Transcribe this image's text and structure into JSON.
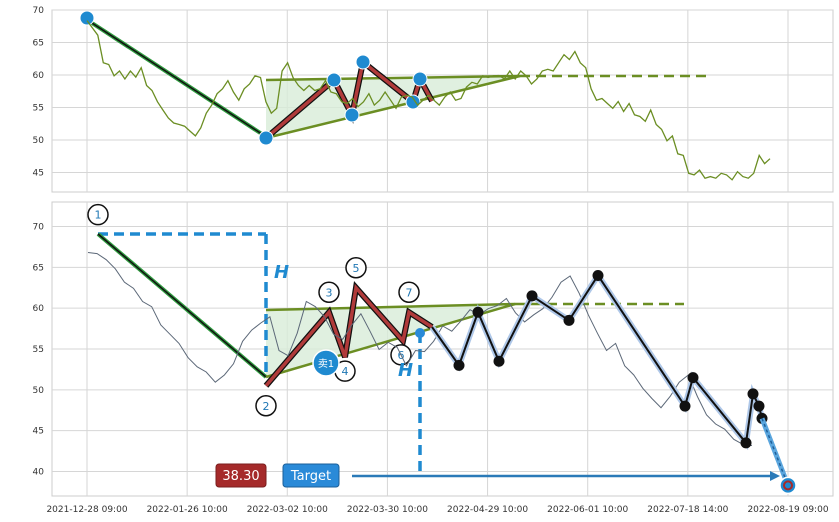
{
  "chart_data": [
    {
      "type": "line",
      "panel": "top",
      "ylim": [
        42,
        70
      ],
      "y_ticks": [
        45,
        50,
        55,
        60,
        65,
        70
      ],
      "grid": true,
      "series": [
        {
          "values": [
            [
              0,
              68.5
            ],
            [
              4,
              66
            ],
            [
              6,
              62
            ],
            [
              8,
              61.5
            ],
            [
              10,
              60
            ],
            [
              12,
              60.5
            ],
            [
              14,
              59.5
            ],
            [
              16,
              60.5
            ],
            [
              18,
              59.8
            ],
            [
              20,
              61
            ],
            [
              22,
              58.5
            ],
            [
              24,
              57.5
            ],
            [
              26,
              56
            ],
            [
              28,
              54.5
            ],
            [
              30,
              53.5
            ],
            [
              32,
              52.5
            ],
            [
              34,
              52.5
            ],
            [
              36,
              52
            ],
            [
              38,
              51.5
            ],
            [
              40,
              50.5
            ],
            [
              42,
              52
            ],
            [
              44,
              54
            ],
            [
              46,
              55.5
            ],
            [
              48,
              57
            ],
            [
              50,
              58
            ],
            [
              52,
              59
            ],
            [
              54,
              57.5
            ],
            [
              56,
              56
            ],
            [
              58,
              58
            ],
            [
              60,
              58.5
            ],
            [
              62,
              60
            ],
            [
              64,
              59.5
            ],
            [
              66,
              56
            ],
            [
              68,
              54
            ],
            [
              70,
              55
            ],
            [
              72,
              60.5
            ],
            [
              74,
              62
            ],
            [
              76,
              59.5
            ],
            [
              78,
              58.5
            ],
            [
              80,
              57.5
            ],
            [
              82,
              58.5
            ],
            [
              84,
              57.5
            ],
            [
              86,
              58
            ],
            [
              88,
              59
            ],
            [
              90,
              57.5
            ],
            [
              92,
              57
            ],
            [
              94,
              56
            ],
            [
              96,
              55.5
            ],
            [
              98,
              56.5
            ],
            [
              100,
              55
            ],
            [
              102,
              56
            ],
            [
              104,
              57
            ],
            [
              106,
              55.5
            ],
            [
              108,
              56
            ],
            [
              110,
              57.5
            ],
            [
              112,
              56
            ],
            [
              114,
              55
            ],
            [
              116,
              56.5
            ],
            [
              118,
              57
            ],
            [
              120,
              56.5
            ],
            [
              122,
              55.5
            ],
            [
              124,
              56
            ],
            [
              126,
              57
            ],
            [
              128,
              56
            ],
            [
              130,
              55.5
            ],
            [
              132,
              56.5
            ],
            [
              134,
              57.5
            ],
            [
              136,
              56
            ],
            [
              138,
              56.5
            ],
            [
              140,
              58
            ],
            [
              142,
              59
            ],
            [
              144,
              58.5
            ],
            [
              146,
              60
            ],
            [
              148,
              59.5
            ],
            [
              150,
              60
            ],
            [
              152,
              59.8
            ],
            [
              154,
              59.5
            ],
            [
              156,
              60.5
            ],
            [
              158,
              59.5
            ],
            [
              160,
              60.5
            ],
            [
              162,
              60
            ],
            [
              164,
              58.5
            ],
            [
              166,
              59.5
            ],
            [
              168,
              60.5
            ],
            [
              170,
              61
            ],
            [
              172,
              60.5
            ],
            [
              174,
              62
            ],
            [
              176,
              63
            ],
            [
              178,
              62.5
            ],
            [
              180,
              63.5
            ],
            [
              182,
              62
            ],
            [
              184,
              61
            ],
            [
              186,
              58
            ],
            [
              188,
              56
            ],
            [
              190,
              56.5
            ],
            [
              192,
              55.5
            ],
            [
              194,
              55
            ],
            [
              196,
              55.8
            ],
            [
              198,
              54.5
            ],
            [
              200,
              55.5
            ],
            [
              202,
              54
            ],
            [
              204,
              53.5
            ],
            [
              206,
              53
            ],
            [
              208,
              54.5
            ],
            [
              210,
              52.5
            ],
            [
              212,
              51.5
            ],
            [
              214,
              50
            ],
            [
              216,
              50.5
            ],
            [
              218,
              48
            ],
            [
              220,
              47.5
            ],
            [
              222,
              45
            ],
            [
              224,
              44.5
            ],
            [
              226,
              45.5
            ],
            [
              228,
              44
            ],
            [
              230,
              44.5
            ],
            [
              232,
              44
            ],
            [
              234,
              45
            ],
            [
              236,
              44.5
            ],
            [
              238,
              44
            ],
            [
              240,
              45
            ],
            [
              242,
              44.5
            ],
            [
              244,
              44
            ],
            [
              246,
              45
            ],
            [
              248,
              47.5
            ],
            [
              250,
              46.5
            ],
            [
              252,
              47
            ]
          ]
        }
      ]
    },
    {
      "type": "line",
      "panel": "bottom",
      "ylim": [
        37,
        73
      ],
      "y_ticks": [
        40,
        45,
        50,
        55,
        60,
        65,
        70
      ],
      "x_ticks": [
        "2021-12-28 09:00",
        "2022-01-26 10:00",
        "2022-03-02 10:00",
        "2022-03-30 10:00",
        "2022-04-29 10:00",
        "2022-06-01 10:00",
        "2022-07-18 14:00",
        "2022-08-19 09:00"
      ],
      "grid": true,
      "series": [
        {
          "values": [
            [
              0,
              67
            ],
            [
              3,
              66.5
            ],
            [
              6,
              66
            ],
            [
              9,
              65
            ],
            [
              12,
              63
            ],
            [
              15,
              62.5
            ],
            [
              18,
              61
            ],
            [
              21,
              60
            ],
            [
              24,
              58
            ],
            [
              27,
              57
            ],
            [
              30,
              55.5
            ],
            [
              33,
              54
            ],
            [
              36,
              53
            ],
            [
              39,
              52
            ],
            [
              42,
              51
            ],
            [
              45,
              52
            ],
            [
              48,
              53
            ],
            [
              51,
              56
            ],
            [
              54,
              57.5
            ],
            [
              57,
              58
            ],
            [
              60,
              59
            ],
            [
              63,
              55
            ],
            [
              66,
              54
            ],
            [
              69,
              57
            ],
            [
              72,
              61
            ],
            [
              75,
              60
            ],
            [
              78,
              59
            ],
            [
              81,
              57
            ],
            [
              84,
              56
            ],
            [
              87,
              58
            ],
            [
              90,
              59.5
            ],
            [
              93,
              57
            ],
            [
              96,
              55
            ],
            [
              99,
              56
            ],
            [
              102,
              55
            ],
            [
              105,
              53
            ],
            [
              108,
              55
            ],
            [
              111,
              54.5
            ],
            [
              114,
              56
            ],
            [
              117,
              58
            ],
            [
              120,
              57
            ],
            [
              123,
              58.5
            ],
            [
              126,
              60
            ],
            [
              129,
              59
            ],
            [
              132,
              60
            ],
            [
              135,
              60.5
            ],
            [
              138,
              61
            ],
            [
              141,
              59.5
            ],
            [
              144,
              58.5
            ],
            [
              147,
              59
            ],
            [
              150,
              60
            ],
            [
              153,
              61.5
            ],
            [
              156,
              63
            ],
            [
              159,
              64
            ],
            [
              162,
              62
            ],
            [
              165,
              59
            ],
            [
              168,
              57
            ],
            [
              171,
              55
            ],
            [
              174,
              55.5
            ],
            [
              177,
              53
            ],
            [
              180,
              52
            ],
            [
              183,
              50
            ],
            [
              186,
              49
            ],
            [
              189,
              48
            ],
            [
              192,
              49
            ],
            [
              195,
              51
            ],
            [
              198,
              52
            ],
            [
              201,
              49
            ],
            [
              204,
              47
            ],
            [
              207,
              46
            ],
            [
              210,
              45
            ],
            [
              213,
              44
            ],
            [
              216,
              43.5
            ],
            [
              219,
              43
            ]
          ]
        }
      ],
      "pattern_points": {
        "labels": [
          "1",
          "2",
          "3",
          "4",
          "5",
          "6",
          "7"
        ],
        "values": [
          69,
          50.5,
          59.5,
          54,
          62.5,
          56,
          59.5
        ]
      },
      "zigzag_points": [
        53,
        59.5,
        53.5,
        61.5,
        58.5,
        64,
        48,
        51.5,
        43.5,
        49.5,
        48,
        46.5
      ],
      "target_value": 38.3,
      "annotations": {
        "height_letters": [
          "H",
          "H"
        ],
        "sell_marker": "卖1",
        "price_box": "38.30",
        "target_label": "Target"
      }
    }
  ],
  "colors": {
    "price_line_top": "#6b8e23",
    "price_line_bottom": "#5c6878",
    "trend_green": "#2e9a3e",
    "zigzag_red": "#b03a3a",
    "pattern_fill": "#d8ecd8",
    "marker_blue": "#1f8ad0",
    "box_red": "#a52a2a",
    "box_blue": "#2a8ad8",
    "grid": "#d6d6d6"
  }
}
